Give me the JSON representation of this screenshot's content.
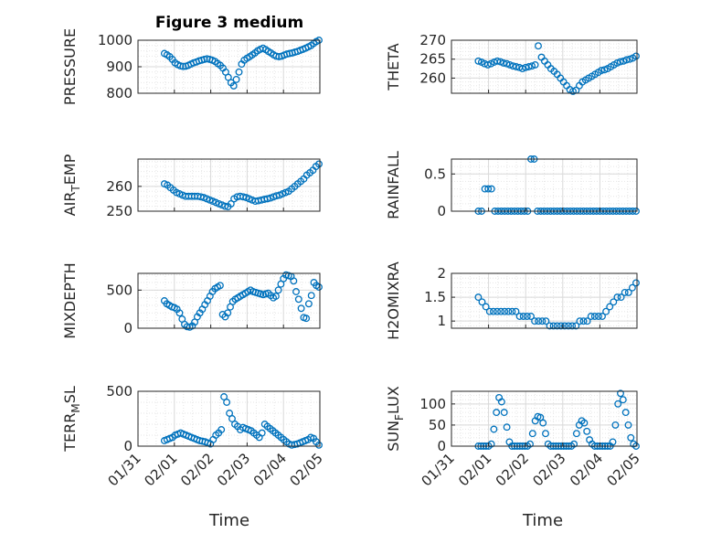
{
  "figure": {
    "title": "Figure 3 medium",
    "xlabel": "Time"
  },
  "colors": {
    "marker": "#0072BD",
    "frame": "#262626",
    "grid": "#d9d9d9",
    "minor_grid": "#e6e6e6"
  },
  "chart_data": [
    {
      "type": "scatter",
      "ylabel": "PRESSURE",
      "ylabel_sub": "",
      "ylim": [
        800,
        1000
      ],
      "yticks": [
        "800",
        "900",
        "1000"
      ],
      "ytick_values": [
        800,
        900,
        1000
      ],
      "series": [
        {
          "values": [
            950,
            945,
            938,
            928,
            915,
            908,
            903,
            901,
            902,
            905,
            910,
            915,
            918,
            922,
            925,
            928,
            930,
            928,
            925,
            920,
            912,
            905,
            895,
            880,
            860,
            840,
            828,
            852,
            880,
            910,
            925,
            932,
            938,
            945,
            952,
            960,
            966,
            970,
            965,
            958,
            952,
            945,
            940,
            938,
            940,
            944,
            948,
            950,
            952,
            955,
            958,
            962,
            966,
            970,
            975,
            980,
            988,
            995,
            1000
          ]
        }
      ]
    },
    {
      "type": "scatter",
      "ylabel": "THETA",
      "ylabel_sub": "",
      "ylim": [
        256,
        270
      ],
      "yticks": [
        "260",
        "265",
        "270"
      ],
      "ytick_values": [
        260,
        265,
        270
      ],
      "series": [
        {
          "values": [
            264.5,
            264.2,
            263.8,
            263.5,
            263.8,
            264.2,
            264.5,
            264.3,
            264,
            263.8,
            263.5,
            263.2,
            263,
            262.8,
            262.5,
            262.8,
            263,
            263.2,
            263.5,
            268.5,
            265.5,
            264.5,
            263.5,
            262.5,
            261.8,
            261,
            260,
            259,
            258,
            257,
            256.5,
            256.8,
            258,
            259,
            259.5,
            260,
            260.5,
            261,
            261.5,
            262,
            262.2,
            262.5,
            263,
            263.5,
            264,
            264.3,
            264.5,
            264.8,
            265,
            265.3,
            265.8
          ]
        }
      ]
    },
    {
      "type": "scatter",
      "ylabel": "AIR",
      "ylabel_sub": "T",
      "ylabel_tail": "EMP",
      "ylim": [
        250,
        271
      ],
      "yticks": [
        "250",
        "260"
      ],
      "ytick_values": [
        250,
        260
      ],
      "series": [
        {
          "values": [
            261,
            260.5,
            259.5,
            258.5,
            257.5,
            257,
            256.5,
            256,
            256,
            256,
            256,
            256,
            255.8,
            255.5,
            255,
            254.5,
            254,
            253.5,
            253,
            252.5,
            252,
            251.8,
            253,
            255,
            255.8,
            256,
            255.8,
            255.5,
            255,
            254.5,
            254,
            254.2,
            254.5,
            254.8,
            255,
            255.3,
            255.8,
            256.2,
            256.5,
            257,
            257.5,
            258,
            259,
            260,
            261,
            262,
            263,
            264.5,
            265.5,
            266.5,
            268,
            269
          ]
        }
      ]
    },
    {
      "type": "scatter",
      "ylabel": "RAINFALL",
      "ylabel_sub": "",
      "ylim": [
        0,
        0.7
      ],
      "yticks": [
        "0",
        "0.5"
      ],
      "ytick_values": [
        0,
        0.5
      ],
      "series": [
        {
          "values": [
            0,
            0,
            0.3,
            0.3,
            0.3,
            0,
            0,
            0,
            0,
            0,
            0,
            0,
            0,
            0,
            0,
            0,
            0.7,
            0.7,
            0,
            0,
            0,
            0,
            0,
            0,
            0,
            0,
            0,
            0,
            0,
            0,
            0,
            0,
            0,
            0,
            0,
            0,
            0,
            0,
            0,
            0,
            0,
            0,
            0,
            0,
            0,
            0,
            0,
            0,
            0
          ]
        }
      ]
    },
    {
      "type": "scatter",
      "ylabel": "MIXDEPTH",
      "ylabel_sub": "",
      "ylim": [
        0,
        720
      ],
      "yticks": [
        "0",
        "500"
      ],
      "ytick_values": [
        0,
        500
      ],
      "series": [
        {
          "values": [
            360,
            320,
            300,
            280,
            270,
            250,
            200,
            120,
            50,
            20,
            15,
            30,
            80,
            150,
            200,
            250,
            310,
            360,
            420,
            480,
            520,
            540,
            560,
            180,
            150,
            200,
            280,
            350,
            380,
            400,
            420,
            440,
            460,
            480,
            500,
            480,
            470,
            460,
            450,
            440,
            450,
            460,
            430,
            400,
            420,
            500,
            580,
            650,
            700,
            690,
            680,
            620,
            480,
            380,
            260,
            140,
            130,
            320,
            430,
            600,
            560,
            540
          ]
        }
      ]
    },
    {
      "type": "scatter",
      "ylabel": "H2OMIXRA",
      "ylabel_sub": "",
      "ylim": [
        0.85,
        2
      ],
      "yticks": [
        "1",
        "1.5",
        "2"
      ],
      "ytick_values": [
        1,
        1.5,
        2
      ],
      "series": [
        {
          "values": [
            1.5,
            1.4,
            1.3,
            1.2,
            1.2,
            1.2,
            1.2,
            1.2,
            1.2,
            1.2,
            1.2,
            1.1,
            1.1,
            1.1,
            1.1,
            1.0,
            1.0,
            1.0,
            1.0,
            0.9,
            0.9,
            0.9,
            0.9,
            0.9,
            0.9,
            0.9,
            0.9,
            1.0,
            1.0,
            1.0,
            1.1,
            1.1,
            1.1,
            1.1,
            1.2,
            1.3,
            1.4,
            1.5,
            1.5,
            1.6,
            1.6,
            1.7,
            1.8
          ]
        }
      ]
    },
    {
      "type": "scatter",
      "ylabel": "TERR",
      "ylabel_sub": "M",
      "ylabel_tail": "SL",
      "ylim": [
        0,
        500
      ],
      "yticks": [
        "0",
        "500"
      ],
      "ytick_values": [
        0,
        500
      ],
      "series": [
        {
          "values": [
            50,
            60,
            70,
            80,
            100,
            110,
            120,
            110,
            100,
            90,
            80,
            70,
            60,
            50,
            45,
            40,
            30,
            20,
            60,
            100,
            120,
            150,
            450,
            400,
            300,
            250,
            200,
            180,
            150,
            170,
            160,
            150,
            140,
            120,
            100,
            80,
            120,
            200,
            180,
            160,
            140,
            120,
            100,
            80,
            60,
            40,
            20,
            10,
            15,
            20,
            30,
            40,
            50,
            60,
            80,
            70,
            40,
            10
          ]
        }
      ]
    },
    {
      "type": "scatter",
      "ylabel": "SUN",
      "ylabel_sub": "F",
      "ylabel_tail": "LUX",
      "ylim": [
        0,
        130
      ],
      "yticks": [
        "0",
        "50",
        "100"
      ],
      "ytick_values": [
        0,
        50,
        100
      ],
      "series": [
        {
          "values": [
            0,
            0,
            0,
            0,
            0,
            5,
            40,
            80,
            115,
            105,
            80,
            45,
            10,
            0,
            0,
            0,
            0,
            0,
            0,
            0,
            5,
            30,
            60,
            70,
            68,
            55,
            30,
            5,
            0,
            0,
            0,
            0,
            0,
            0,
            0,
            0,
            0,
            5,
            30,
            50,
            60,
            55,
            35,
            15,
            5,
            0,
            0,
            0,
            0,
            0,
            0,
            0,
            10,
            50,
            100,
            125,
            110,
            80,
            50,
            20,
            5,
            0
          ]
        }
      ]
    }
  ],
  "x_axis": {
    "ticklabels": [
      "01/31",
      "02/01",
      "02/02",
      "02/03",
      "02/04",
      "02/05"
    ]
  }
}
